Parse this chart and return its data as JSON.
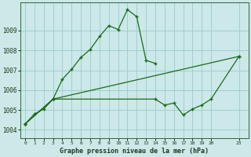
{
  "line1_x": [
    0,
    1,
    2,
    3,
    4,
    5,
    6,
    7,
    8,
    9,
    10,
    11,
    12,
    13,
    14
  ],
  "line1_y": [
    1004.3,
    1004.8,
    1005.05,
    1005.55,
    1006.55,
    1007.05,
    1007.65,
    1008.05,
    1008.7,
    1009.25,
    1009.05,
    1010.05,
    1009.7,
    1007.5,
    1007.35
  ],
  "line2_x": [
    0,
    3,
    23
  ],
  "line2_y": [
    1004.3,
    1005.55,
    1007.7
  ],
  "line3_x": [
    0,
    3,
    14,
    15,
    16,
    17,
    18,
    19,
    20,
    23
  ],
  "line3_y": [
    1004.3,
    1005.55,
    1005.55,
    1005.25,
    1005.35,
    1004.75,
    1005.05,
    1005.25,
    1005.55,
    1007.7
  ],
  "line_color": "#1a6b1a",
  "bg_color": "#cce8e8",
  "grid_color": "#99cccc",
  "xlabel": "Graphe pression niveau de la mer (hPa)",
  "xticks": [
    0,
    1,
    2,
    3,
    4,
    5,
    6,
    7,
    8,
    9,
    10,
    11,
    12,
    13,
    14,
    15,
    16,
    17,
    18,
    19,
    20,
    23
  ],
  "yticks": [
    1004,
    1005,
    1006,
    1007,
    1008,
    1009
  ],
  "xlim": [
    -0.5,
    24.0
  ],
  "ylim": [
    1003.6,
    1010.4
  ]
}
